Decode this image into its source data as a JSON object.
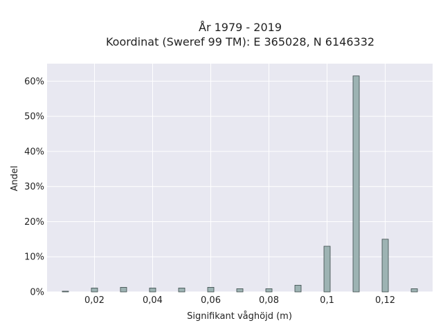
{
  "chart_data": {
    "type": "bar",
    "title_line1": "År 1979 - 2019",
    "title_line2": "Koordinat (Sweref 99 TM): E 365028, N 6146332",
    "xlabel": "Signifikant våghöjd (m)",
    "ylabel": "Andel",
    "x": [
      0.01,
      0.02,
      0.03,
      0.04,
      0.05,
      0.06,
      0.07,
      0.08,
      0.09,
      0.1,
      0.11,
      0.12,
      0.13
    ],
    "values": [
      0.2,
      1.1,
      1.3,
      1.1,
      1.1,
      1.3,
      0.9,
      0.9,
      1.9,
      13.0,
      61.5,
      15.0,
      0.9
    ],
    "xlim": [
      0.0037,
      0.1363
    ],
    "ylim": [
      0,
      65
    ],
    "xticks": [
      0.02,
      0.04,
      0.06,
      0.08,
      0.1,
      0.12
    ],
    "xtick_labels": [
      "0,02",
      "0,04",
      "0,06",
      "0,08",
      "0,1",
      "0,12"
    ],
    "yticks": [
      0,
      10,
      20,
      30,
      40,
      50,
      60
    ],
    "ytick_labels": [
      "0%",
      "10%",
      "20%",
      "30%",
      "40%",
      "50%",
      "60%"
    ],
    "grid": true,
    "colors": {
      "bar_fill": "#9db3b3",
      "bar_edge": "#3b4a4a",
      "plot_background": "#e8e8f1",
      "grid": "#ffffff"
    }
  }
}
